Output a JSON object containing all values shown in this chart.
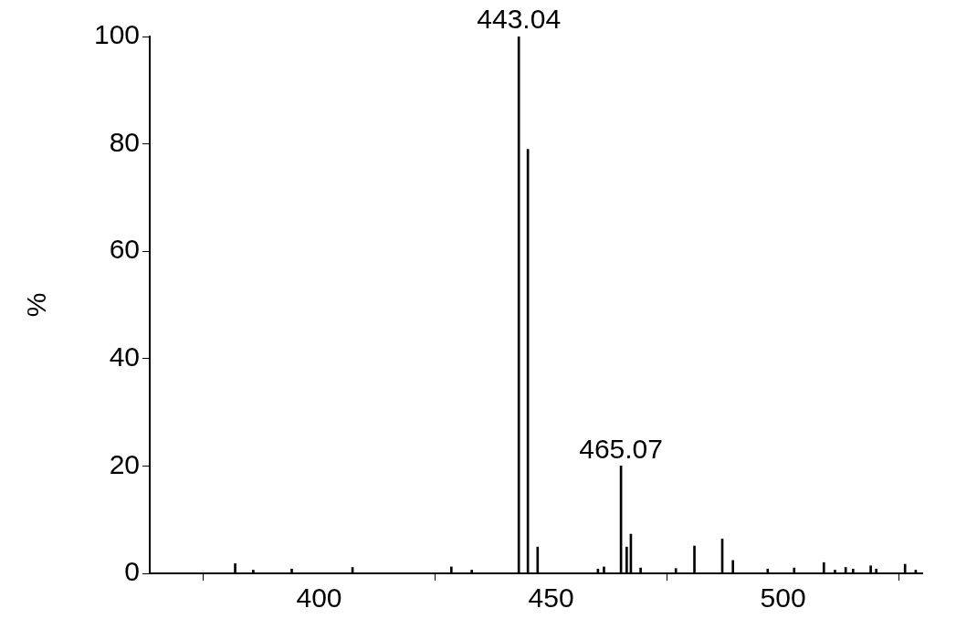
{
  "chart_data": {
    "type": "bar",
    "ylabel": "%",
    "x": [
      381.9,
      385.8,
      394.1,
      407.2,
      428.5,
      432.9,
      443.04,
      445.0,
      447.1,
      460.1,
      461.4,
      465.07,
      466.3,
      467.2,
      469.3,
      476.9,
      480.9,
      486.9,
      489.2,
      496.7,
      502.4,
      508.8,
      511.2,
      513.5,
      515.1,
      518.9,
      520.1,
      526.3,
      528.6
    ],
    "series": [
      {
        "color": "#000000",
        "values": [
          1.8,
          0.6,
          0.8,
          1.1,
          1.2,
          0.6,
          100,
          79,
          4.9,
          0.8,
          1.2,
          20,
          4.9,
          7.3,
          1.0,
          0.9,
          5.1,
          6.4,
          2.4,
          0.8,
          1.0,
          2.0,
          0.6,
          1.1,
          0.8,
          1.4,
          0.8,
          1.7,
          0.6
        ]
      }
    ],
    "xlim": [
      363.5,
      530
    ],
    "ylim": [
      0,
      100
    ],
    "xticks": [
      400,
      450,
      500
    ],
    "yticks": [
      0,
      20,
      40,
      60,
      80,
      100
    ],
    "annotations": [
      {
        "text": "443.04",
        "x": 443.04,
        "y": 100
      },
      {
        "text": "465.07",
        "x": 465.07,
        "y": 20
      }
    ],
    "grid": false,
    "legend": false
  }
}
